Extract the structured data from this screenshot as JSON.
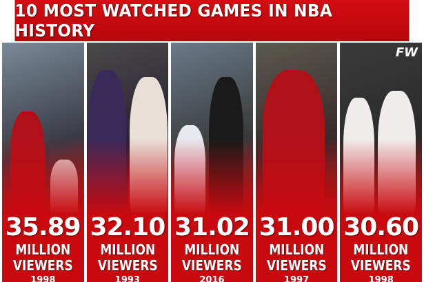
{
  "title": "10 MOST WATCHED GAMES IN NBA HISTORY",
  "logo": "FW",
  "panels": [
    {
      "value": "35.89",
      "line1": "MILLION",
      "line2": "VIEWERS",
      "year": "1998"
    },
    {
      "value": "32.10",
      "line1": "MILLION",
      "line2": "VIEWERS",
      "year": "1993"
    },
    {
      "value": "31.02",
      "line1": "MILLION",
      "line2": "VIEWERS",
      "year": "2016"
    },
    {
      "value": "31.00",
      "line1": "MILLION",
      "line2": "VIEWERS",
      "year": "1997"
    },
    {
      "value": "30.60",
      "line1": "MILLION",
      "line2": "VIEWERS",
      "year": "1998"
    }
  ]
}
